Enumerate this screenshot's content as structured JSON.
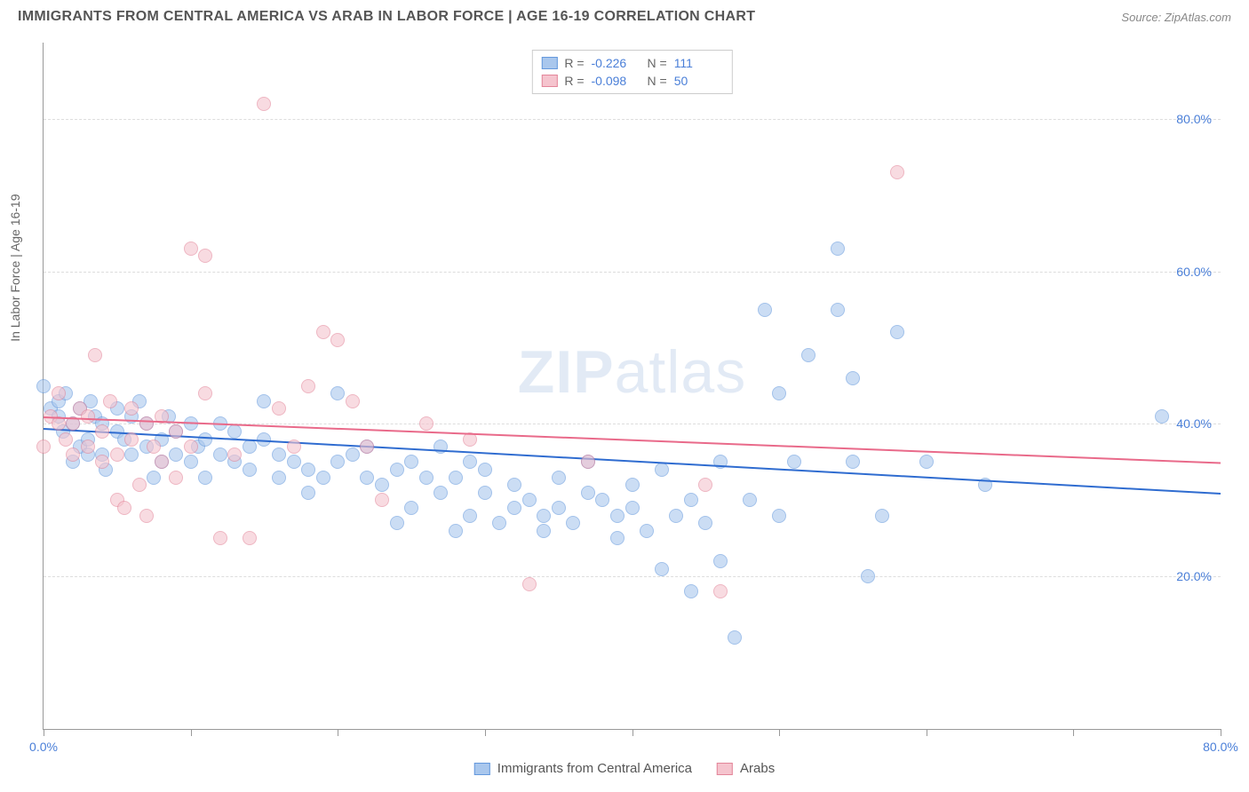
{
  "header": {
    "title": "IMMIGRANTS FROM CENTRAL AMERICA VS ARAB IN LABOR FORCE | AGE 16-19 CORRELATION CHART",
    "source_label": "Source:",
    "source_name": "ZipAtlas.com"
  },
  "chart": {
    "type": "scatter",
    "x_axis_title": "",
    "y_axis_title": "In Labor Force | Age 16-19",
    "xlim": [
      0,
      80
    ],
    "ylim": [
      0,
      90
    ],
    "x_ticks": [
      0,
      10,
      20,
      30,
      40,
      50,
      60,
      70,
      80
    ],
    "x_tick_labels": {
      "0": "0.0%",
      "80": "80.0%"
    },
    "y_ticks": [
      20,
      40,
      60,
      80
    ],
    "y_tick_labels": {
      "20": "20.0%",
      "40": "40.0%",
      "60": "60.0%",
      "80": "80.0%"
    },
    "background_color": "#ffffff",
    "grid_color": "#dddddd",
    "axis_color": "#999999",
    "tick_label_color": "#4a7fd8",
    "axis_title_color": "#666666",
    "point_radius": 8,
    "point_opacity": 0.6,
    "series": [
      {
        "name": "Immigrants from Central America",
        "fill_color": "#a9c7ed",
        "stroke_color": "#6599dd",
        "correlation_R": "-0.226",
        "correlation_N": "111",
        "trend_line": {
          "color": "#2f6cd0",
          "y_start": 39.5,
          "y_end": 31
        },
        "points": [
          [
            0,
            45
          ],
          [
            0.5,
            42
          ],
          [
            1,
            43
          ],
          [
            1,
            41
          ],
          [
            1.3,
            39
          ],
          [
            1.5,
            44
          ],
          [
            2,
            40
          ],
          [
            2,
            35
          ],
          [
            2.5,
            42
          ],
          [
            2.5,
            37
          ],
          [
            3,
            38
          ],
          [
            3,
            36
          ],
          [
            3.2,
            43
          ],
          [
            3.5,
            41
          ],
          [
            4,
            40
          ],
          [
            4,
            36
          ],
          [
            4.2,
            34
          ],
          [
            5,
            39
          ],
          [
            5,
            42
          ],
          [
            5.5,
            38
          ],
          [
            6,
            36
          ],
          [
            6,
            41
          ],
          [
            6.5,
            43
          ],
          [
            7,
            37
          ],
          [
            7,
            40
          ],
          [
            7.5,
            33
          ],
          [
            8,
            38
          ],
          [
            8,
            35
          ],
          [
            8.5,
            41
          ],
          [
            9,
            39
          ],
          [
            9,
            36
          ],
          [
            10,
            40
          ],
          [
            10,
            35
          ],
          [
            10.5,
            37
          ],
          [
            11,
            33
          ],
          [
            11,
            38
          ],
          [
            12,
            36
          ],
          [
            12,
            40
          ],
          [
            13,
            35
          ],
          [
            13,
            39
          ],
          [
            14,
            37
          ],
          [
            14,
            34
          ],
          [
            15,
            38
          ],
          [
            15,
            43
          ],
          [
            16,
            36
          ],
          [
            16,
            33
          ],
          [
            17,
            35
          ],
          [
            18,
            34
          ],
          [
            18,
            31
          ],
          [
            19,
            33
          ],
          [
            20,
            44
          ],
          [
            20,
            35
          ],
          [
            21,
            36
          ],
          [
            22,
            33
          ],
          [
            22,
            37
          ],
          [
            23,
            32
          ],
          [
            24,
            34
          ],
          [
            24,
            27
          ],
          [
            25,
            35
          ],
          [
            25,
            29
          ],
          [
            26,
            33
          ],
          [
            27,
            37
          ],
          [
            27,
            31
          ],
          [
            28,
            26
          ],
          [
            28,
            33
          ],
          [
            29,
            35
          ],
          [
            29,
            28
          ],
          [
            30,
            31
          ],
          [
            30,
            34
          ],
          [
            31,
            27
          ],
          [
            32,
            29
          ],
          [
            32,
            32
          ],
          [
            33,
            30
          ],
          [
            34,
            28
          ],
          [
            34,
            26
          ],
          [
            35,
            33
          ],
          [
            35,
            29
          ],
          [
            36,
            27
          ],
          [
            37,
            31
          ],
          [
            37,
            35
          ],
          [
            38,
            30
          ],
          [
            39,
            28
          ],
          [
            39,
            25
          ],
          [
            40,
            29
          ],
          [
            40,
            32
          ],
          [
            41,
            26
          ],
          [
            42,
            34
          ],
          [
            42,
            21
          ],
          [
            43,
            28
          ],
          [
            44,
            18
          ],
          [
            44,
            30
          ],
          [
            45,
            27
          ],
          [
            46,
            35
          ],
          [
            46,
            22
          ],
          [
            47,
            12
          ],
          [
            48,
            30
          ],
          [
            49,
            55
          ],
          [
            50,
            28
          ],
          [
            50,
            44
          ],
          [
            51,
            35
          ],
          [
            52,
            49
          ],
          [
            54,
            63
          ],
          [
            54,
            55
          ],
          [
            55,
            35
          ],
          [
            55,
            46
          ],
          [
            56,
            20
          ],
          [
            57,
            28
          ],
          [
            58,
            52
          ],
          [
            60,
            35
          ],
          [
            64,
            32
          ],
          [
            76,
            41
          ]
        ]
      },
      {
        "name": "Arabs",
        "fill_color": "#f5c4ce",
        "stroke_color": "#e3869a",
        "correlation_R": "-0.098",
        "correlation_N": "50",
        "trend_line": {
          "color": "#e96a8a",
          "y_start": 41,
          "y_end": 35
        },
        "points": [
          [
            0,
            37
          ],
          [
            0.5,
            41
          ],
          [
            1,
            40
          ],
          [
            1,
            44
          ],
          [
            1.5,
            38
          ],
          [
            2,
            40
          ],
          [
            2,
            36
          ],
          [
            2.5,
            42
          ],
          [
            3,
            41
          ],
          [
            3,
            37
          ],
          [
            3.5,
            49
          ],
          [
            4,
            39
          ],
          [
            4,
            35
          ],
          [
            4.5,
            43
          ],
          [
            5,
            36
          ],
          [
            5,
            30
          ],
          [
            5.5,
            29
          ],
          [
            6,
            38
          ],
          [
            6,
            42
          ],
          [
            6.5,
            32
          ],
          [
            7,
            28
          ],
          [
            7,
            40
          ],
          [
            7.5,
            37
          ],
          [
            8,
            41
          ],
          [
            8,
            35
          ],
          [
            9,
            39
          ],
          [
            9,
            33
          ],
          [
            10,
            63
          ],
          [
            10,
            37
          ],
          [
            11,
            44
          ],
          [
            11,
            62
          ],
          [
            12,
            25
          ],
          [
            13,
            36
          ],
          [
            14,
            25
          ],
          [
            15,
            82
          ],
          [
            16,
            42
          ],
          [
            17,
            37
          ],
          [
            18,
            45
          ],
          [
            19,
            52
          ],
          [
            20,
            51
          ],
          [
            21,
            43
          ],
          [
            22,
            37
          ],
          [
            23,
            30
          ],
          [
            26,
            40
          ],
          [
            29,
            38
          ],
          [
            33,
            19
          ],
          [
            37,
            35
          ],
          [
            45,
            32
          ],
          [
            46,
            18
          ],
          [
            58,
            73
          ]
        ]
      }
    ],
    "watermark": {
      "line1": "ZIP",
      "line2": "atlas"
    },
    "legend_top_labels": {
      "R": "R =",
      "N": "N ="
    },
    "legend_bottom": [
      {
        "label": "Immigrants from Central America",
        "fill": "#a9c7ed",
        "stroke": "#6599dd"
      },
      {
        "label": "Arabs",
        "fill": "#f5c4ce",
        "stroke": "#e3869a"
      }
    ]
  }
}
